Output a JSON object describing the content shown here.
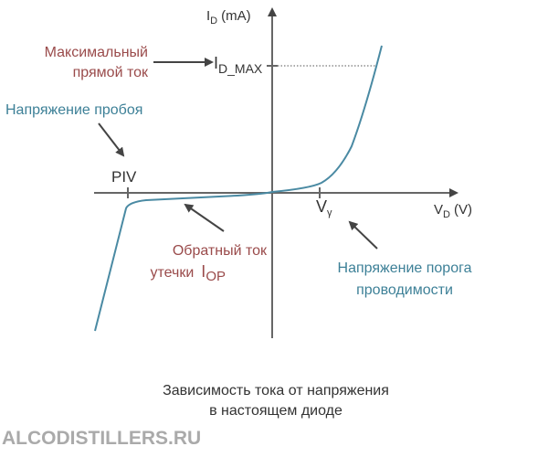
{
  "y_axis": {
    "label": "I",
    "sub": "D",
    "unit": "(mA)"
  },
  "x_axis": {
    "label": "V",
    "sub": "D",
    "unit": "(V)"
  },
  "max_current": {
    "label": [
      "Максимальный",
      "прямой ток"
    ]
  },
  "id_max": {
    "label": "I",
    "sub": "D_MAX"
  },
  "breakdown": {
    "label": "Напряжение пробоя"
  },
  "piv": "PIV",
  "v_gamma": {
    "label": "V",
    "sub": "γ"
  },
  "leakage": {
    "label": [
      "Обратный ток",
      "утечки"
    ],
    "symbol": "I",
    "sub": "OP"
  },
  "threshold": {
    "label": [
      "Напряжение порога",
      "проводимости"
    ]
  },
  "caption": [
    "Зависимость тока от напряжения",
    "в настоящем диоде"
  ],
  "watermark": "ALCODISTILLERS.RU"
}
